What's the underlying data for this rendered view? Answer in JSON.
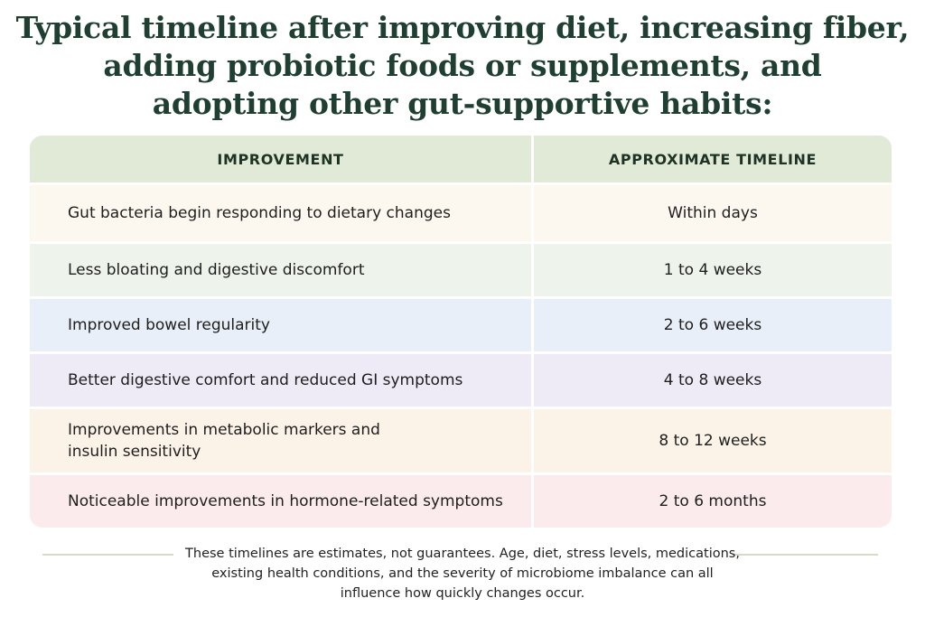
{
  "title": {
    "lines": [
      "Typical timeline after improving diet, increasing fiber,",
      "adding probiotic foods or supplements, and",
      "adopting other gut-supportive habits:"
    ]
  },
  "table": {
    "headers": [
      "IMPROVEMENT",
      "APPROXIMATE TIMELINE"
    ],
    "header_color": "#e1e9d7",
    "rows": [
      {
        "improvement": [
          "Gut bacteria begin responding to dietary changes"
        ],
        "timeline": "Within days",
        "color": "#fcf8ef"
      },
      {
        "improvement": [
          "Less bloating and digestive discomfort"
        ],
        "timeline": "1 to 4 weeks",
        "color": "#eef3ec"
      },
      {
        "improvement": [
          "Improved bowel regularity"
        ],
        "timeline": "2 to 6 weeks",
        "color": "#e8eff8"
      },
      {
        "improvement": [
          "Better digestive comfort and reduced GI symptoms"
        ],
        "timeline": "4 to 8 weeks",
        "color": "#eeeaf6"
      },
      {
        "improvement": [
          "Improvements in metabolic markers and",
          "insulin sensitivity"
        ],
        "timeline": "8 to 12 weeks",
        "color": "#fcf3e8"
      },
      {
        "improvement": [
          "Noticeable improvements in hormone-related symptoms"
        ],
        "timeline": "2 to 6 months",
        "color": "#fbebec"
      }
    ]
  },
  "footer": {
    "lines": [
      "These timelines are estimates, not guarantees. Age, diet, stress levels, medications,",
      "existing health conditions, and the severity of microbiome imbalance can all",
      "influence how quickly changes occur."
    ]
  }
}
